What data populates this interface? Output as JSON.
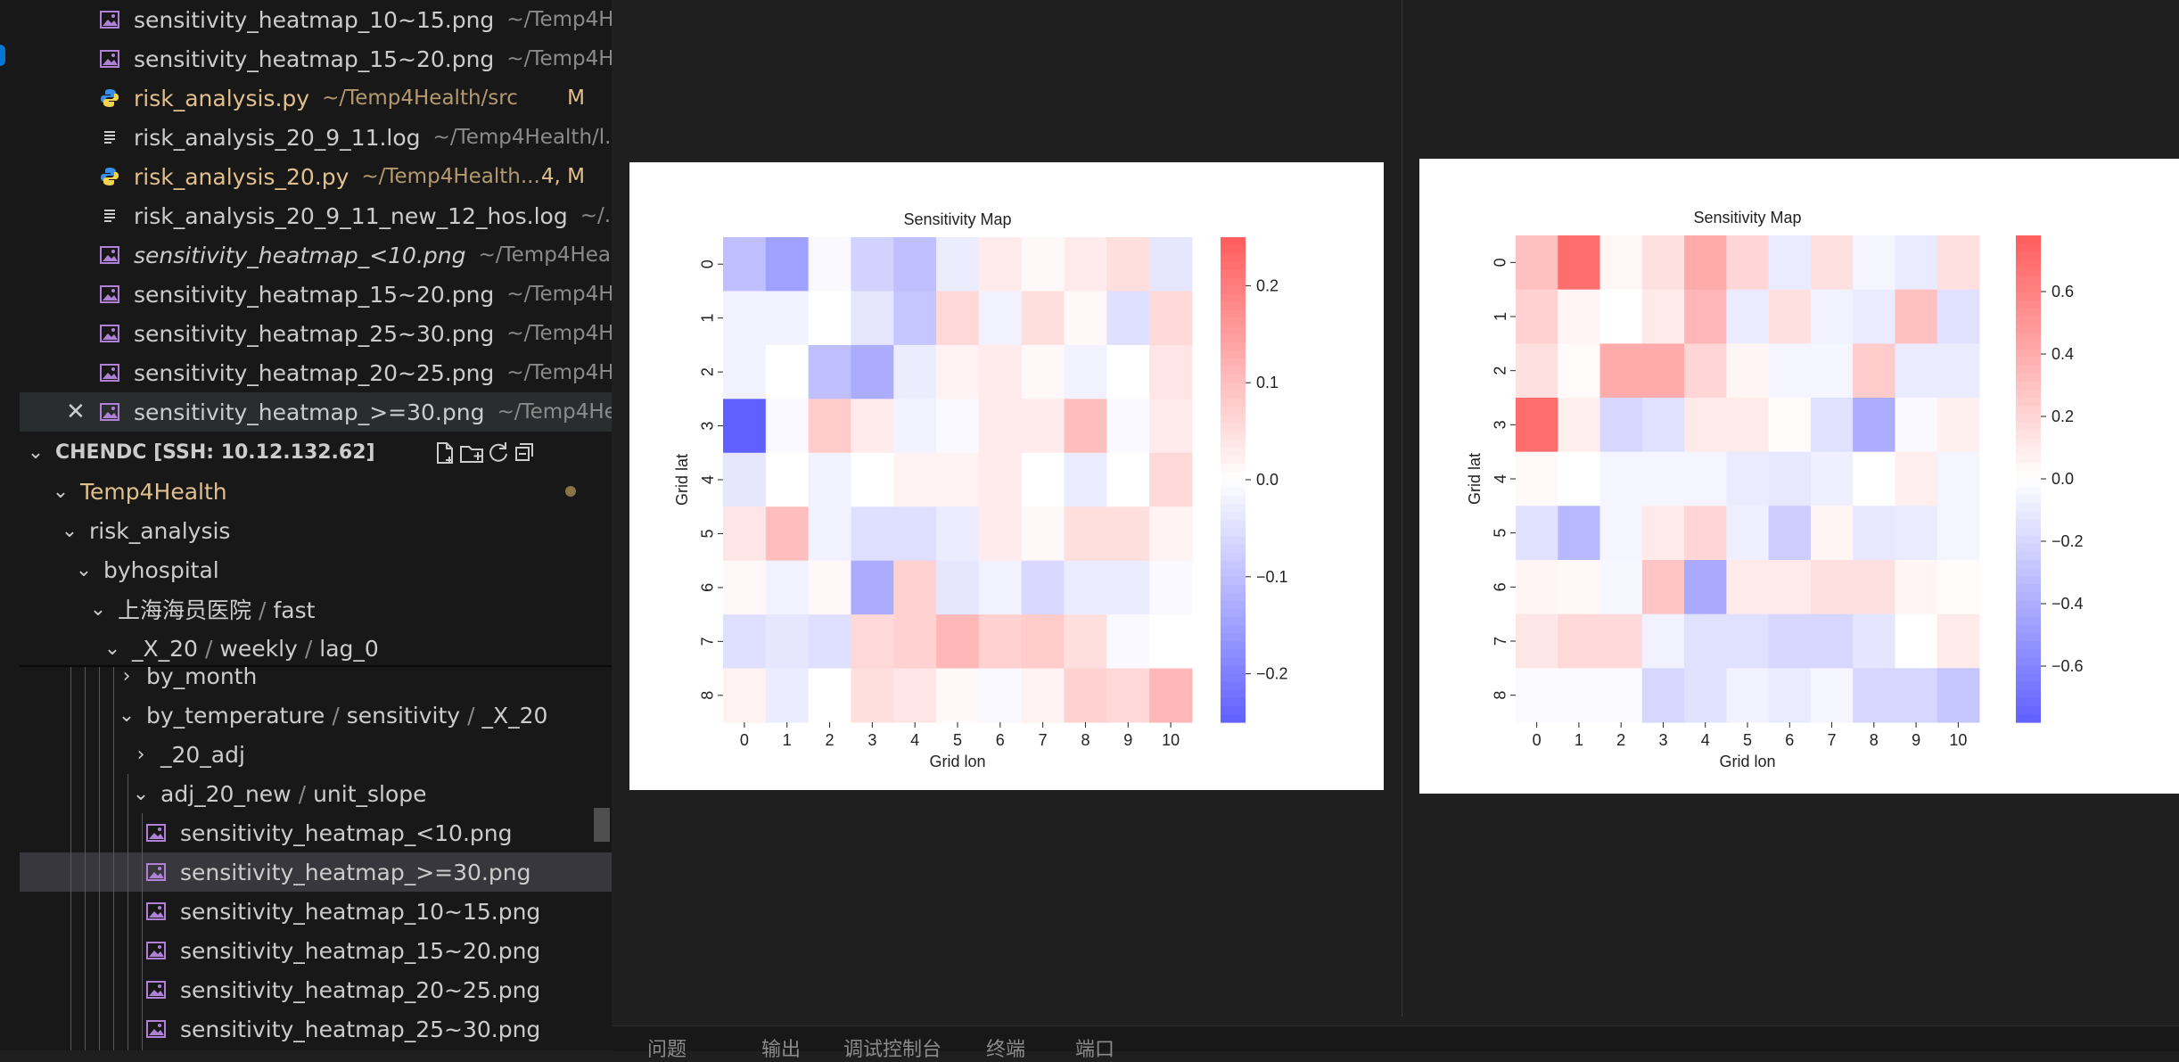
{
  "open_editors": [
    {
      "name": "sensitivity_heatmap_10~15.png",
      "path": "~/Temp4H...",
      "kind": "image",
      "status": "",
      "italic": false,
      "modified": false
    },
    {
      "name": "sensitivity_heatmap_15~20.png",
      "path": "~/Temp4H...",
      "kind": "image",
      "status": "",
      "italic": false,
      "modified": false
    },
    {
      "name": "risk_analysis.py",
      "path": "~/Temp4Health/src",
      "kind": "python",
      "status": "M",
      "italic": false,
      "modified": true
    },
    {
      "name": "risk_analysis_20_9_11.log",
      "path": "~/Temp4Health/l...",
      "kind": "text",
      "status": "",
      "italic": false,
      "modified": false
    },
    {
      "name": "risk_analysis_20.py",
      "path": "~/Temp4Health...",
      "kind": "python",
      "status": "4, M",
      "italic": false,
      "modified": true
    },
    {
      "name": "risk_analysis_20_9_11_new_12_hos.log",
      "path": "~/...",
      "kind": "text",
      "status": "",
      "italic": false,
      "modified": false
    },
    {
      "name": "sensitivity_heatmap_<10.png",
      "path": "~/Temp4Heal...",
      "kind": "image",
      "status": "",
      "italic": true,
      "modified": false
    },
    {
      "name": "sensitivity_heatmap_15~20.png",
      "path": "~/Temp4H...",
      "kind": "image",
      "status": "",
      "italic": false,
      "modified": false
    },
    {
      "name": "sensitivity_heatmap_25~30.png",
      "path": "~/Temp4H...",
      "kind": "image",
      "status": "",
      "italic": false,
      "modified": false
    },
    {
      "name": "sensitivity_heatmap_20~25.png",
      "path": "~/Temp4H...",
      "kind": "image",
      "status": "",
      "italic": false,
      "modified": false
    },
    {
      "name": "sensitivity_heatmap_>=30.png",
      "path": "~/Temp4He...",
      "kind": "image",
      "status": "",
      "italic": false,
      "modified": false,
      "selected": true,
      "close_glyph": "✕"
    }
  ],
  "explorer": {
    "section_title": "CHENDC [SSH: 10.12.132.62]",
    "actions": [
      "new-file",
      "new-folder",
      "refresh",
      "collapse-all"
    ],
    "tree": {
      "root": "Temp4Health",
      "risk_analysis": "risk_analysis",
      "byhospital": "byhospital",
      "hospital_path": [
        "上海海员医院",
        "fast"
      ],
      "x20_path": [
        "_X_20",
        "weekly",
        "lag_0"
      ],
      "by_month": "by_month",
      "by_temperature_path": [
        "by_temperature",
        "sensitivity",
        "_X_20"
      ],
      "adj20": "_20_adj",
      "adj20new_path": [
        "adj_20_new",
        "unit_slope"
      ],
      "chevron_open": "⌄",
      "chevron_closed": "›",
      "files": [
        {
          "name": "sensitivity_heatmap_<10.png"
        },
        {
          "name": "sensitivity_heatmap_>=30.png",
          "active": true
        },
        {
          "name": "sensitivity_heatmap_10~15.png"
        },
        {
          "name": "sensitivity_heatmap_15~20.png"
        },
        {
          "name": "sensitivity_heatmap_20~25.png"
        },
        {
          "name": "sensitivity_heatmap_25~30.png"
        }
      ]
    }
  },
  "panel_tabs": [
    {
      "label": "问题"
    },
    {
      "label": "输出"
    },
    {
      "label": "调试控制台"
    },
    {
      "label": "终端"
    },
    {
      "label": "端口"
    }
  ],
  "colors": {
    "modified": "#e2c08d",
    "accent": "#0078d4",
    "image_icon": "#b180d7",
    "python_icon": "#3b8eea",
    "cmap_neg": "#6060ff",
    "cmap_pos": "#ff5c5c"
  },
  "chart_data": [
    {
      "type": "heatmap",
      "title": "Sensitivity Map",
      "xlabel": "Grid lon",
      "ylabel": "Grid lat",
      "x_ticks": [
        "0",
        "1",
        "2",
        "3",
        "4",
        "5",
        "6",
        "7",
        "8",
        "9",
        "10"
      ],
      "y_ticks": [
        "0",
        "1",
        "2",
        "3",
        "4",
        "5",
        "6",
        "7",
        "8"
      ],
      "colorbar_ticks": [
        "0.2",
        "0.1",
        "0.0",
        "−0.1",
        "−0.2"
      ],
      "colorbar_tick_values": [
        0.2,
        0.1,
        0.0,
        -0.1,
        -0.2
      ],
      "vmin": -0.25,
      "vmax": 0.25,
      "values": [
        [
          -0.1,
          -0.15,
          -0.01,
          -0.07,
          -0.1,
          -0.03,
          0.03,
          0.01,
          0.03,
          0.05,
          -0.04
        ],
        [
          -0.02,
          -0.02,
          0,
          -0.04,
          -0.09,
          0.06,
          -0.02,
          0.05,
          0.01,
          -0.05,
          0.06
        ],
        [
          -0.02,
          0,
          -0.1,
          -0.13,
          -0.03,
          0.02,
          0.03,
          0.01,
          -0.02,
          0,
          0.04
        ],
        [
          -0.25,
          -0.01,
          0.08,
          0.03,
          -0.02,
          -0.01,
          0.03,
          0.03,
          0.1,
          -0.01,
          0.03
        ],
        [
          -0.04,
          0,
          -0.02,
          0,
          0.02,
          0.02,
          0.03,
          0,
          -0.03,
          0,
          0.06
        ],
        [
          0.04,
          0.1,
          -0.02,
          -0.05,
          -0.05,
          -0.03,
          0.03,
          0.01,
          0.05,
          0.05,
          0.02
        ],
        [
          0.01,
          -0.02,
          0.01,
          -0.13,
          0.07,
          -0.04,
          -0.02,
          -0.06,
          -0.03,
          -0.03,
          -0.01
        ],
        [
          -0.05,
          -0.04,
          -0.05,
          0.06,
          0.07,
          0.11,
          0.07,
          0.08,
          0.05,
          -0.01,
          0
        ],
        [
          0.02,
          -0.03,
          0,
          0.05,
          0.04,
          0.01,
          -0.01,
          0.02,
          0.07,
          0.06,
          0.11
        ]
      ]
    },
    {
      "type": "heatmap",
      "title": "Sensitivity Map",
      "xlabel": "Grid lon",
      "ylabel": "Grid lat",
      "x_ticks": [
        "0",
        "1",
        "2",
        "3",
        "4",
        "5",
        "6",
        "7",
        "8",
        "9",
        "10"
      ],
      "y_ticks": [
        "0",
        "1",
        "2",
        "3",
        "4",
        "5",
        "6",
        "7",
        "8"
      ],
      "colorbar_ticks": [
        "0.6",
        "0.4",
        "0.2",
        "0.0",
        "−0.2",
        "−0.4",
        "−0.6"
      ],
      "colorbar_tick_values": [
        0.6,
        0.4,
        0.2,
        0.0,
        -0.2,
        -0.4,
        -0.6
      ],
      "vmin": -0.78,
      "vmax": 0.78,
      "values": [
        [
          0.3,
          0.7,
          0.04,
          0.15,
          0.4,
          0.2,
          -0.1,
          0.15,
          -0.05,
          -0.1,
          0.15
        ],
        [
          0.22,
          0.05,
          0,
          0.1,
          0.35,
          -0.1,
          0.15,
          -0.07,
          -0.1,
          0.3,
          -0.15
        ],
        [
          0.15,
          0.02,
          0.4,
          0.4,
          0.2,
          0.05,
          -0.05,
          -0.05,
          0.25,
          -0.1,
          -0.1
        ],
        [
          0.7,
          0.08,
          -0.2,
          -0.15,
          0.1,
          0.1,
          0.02,
          -0.15,
          -0.4,
          -0.03,
          0.07
        ],
        [
          0.03,
          0,
          -0.05,
          -0.05,
          -0.05,
          -0.1,
          -0.12,
          -0.08,
          0,
          0.08,
          -0.05
        ],
        [
          -0.15,
          -0.35,
          -0.05,
          0.1,
          0.2,
          -0.08,
          -0.25,
          0.05,
          -0.12,
          -0.1,
          -0.05
        ],
        [
          0.05,
          0.04,
          -0.04,
          0.28,
          -0.42,
          0.1,
          0.1,
          0.15,
          0.15,
          0.05,
          0.02
        ],
        [
          0.12,
          0.18,
          0.18,
          -0.07,
          -0.15,
          -0.15,
          -0.2,
          -0.2,
          -0.13,
          0,
          0.1
        ],
        [
          -0.02,
          -0.02,
          -0.02,
          -0.2,
          -0.15,
          -0.07,
          -0.1,
          -0.05,
          -0.2,
          -0.2,
          -0.28
        ]
      ]
    }
  ]
}
